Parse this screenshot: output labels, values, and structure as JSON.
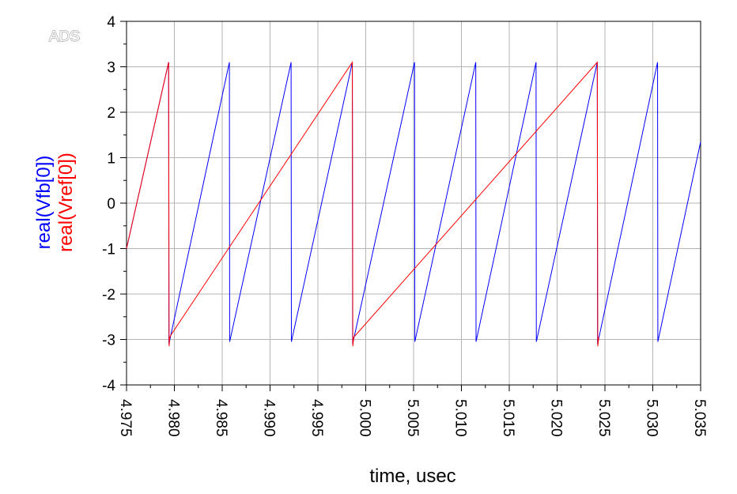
{
  "watermark": "ADS",
  "chart_data": {
    "type": "line",
    "xlabel": "time, usec",
    "ylabel_lines": [
      {
        "text": "real(Vfb[0])",
        "color": "#0000ff"
      },
      {
        "text": "real(Vref[0])",
        "color": "#ff0000"
      }
    ],
    "xlim": [
      4.975,
      5.035
    ],
    "ylim": [
      -4,
      4
    ],
    "x_ticks": [
      "4.975",
      "4.980",
      "4.985",
      "4.990",
      "4.995",
      "5.000",
      "5.005",
      "5.010",
      "5.015",
      "5.020",
      "5.025",
      "5.030",
      "5.035"
    ],
    "y_ticks": [
      "-4",
      "-3",
      "-2",
      "-1",
      "0",
      "1",
      "2",
      "3",
      "4"
    ],
    "grid": true,
    "series": [
      {
        "name": "real(Vfb[0])",
        "color": "#0000ff",
        "points": [
          [
            4.975,
            -1.0
          ],
          [
            4.9794,
            3.1
          ],
          [
            4.97943,
            -3.1
          ],
          [
            4.98575,
            3.1
          ],
          [
            4.98578,
            -3.05
          ],
          [
            4.9922,
            3.1
          ],
          [
            4.99223,
            -3.05
          ],
          [
            4.9986,
            3.1
          ],
          [
            4.99863,
            -3.1
          ],
          [
            5.0051,
            3.1
          ],
          [
            5.00513,
            -3.05
          ],
          [
            5.0115,
            3.1
          ],
          [
            5.01153,
            -3.05
          ],
          [
            5.0178,
            3.1
          ],
          [
            5.01783,
            -3.05
          ],
          [
            5.0242,
            3.1
          ],
          [
            5.02423,
            -3.1
          ],
          [
            5.0305,
            3.1
          ],
          [
            5.03053,
            -3.05
          ],
          [
            5.035,
            1.35
          ]
        ]
      },
      {
        "name": "real(Vref[0])",
        "color": "#ff0000",
        "points": [
          [
            4.975,
            -1.0
          ],
          [
            4.9794,
            3.1
          ],
          [
            4.97945,
            -3.15
          ],
          [
            4.97952,
            -2.95
          ],
          [
            4.97965,
            -2.9
          ],
          [
            4.9986,
            3.1
          ],
          [
            4.99865,
            -3.15
          ],
          [
            4.99875,
            -2.95
          ],
          [
            5.0242,
            3.1
          ],
          [
            5.02425,
            -3.15
          ],
          [
            5.02435,
            -2.95
          ]
        ]
      }
    ]
  }
}
